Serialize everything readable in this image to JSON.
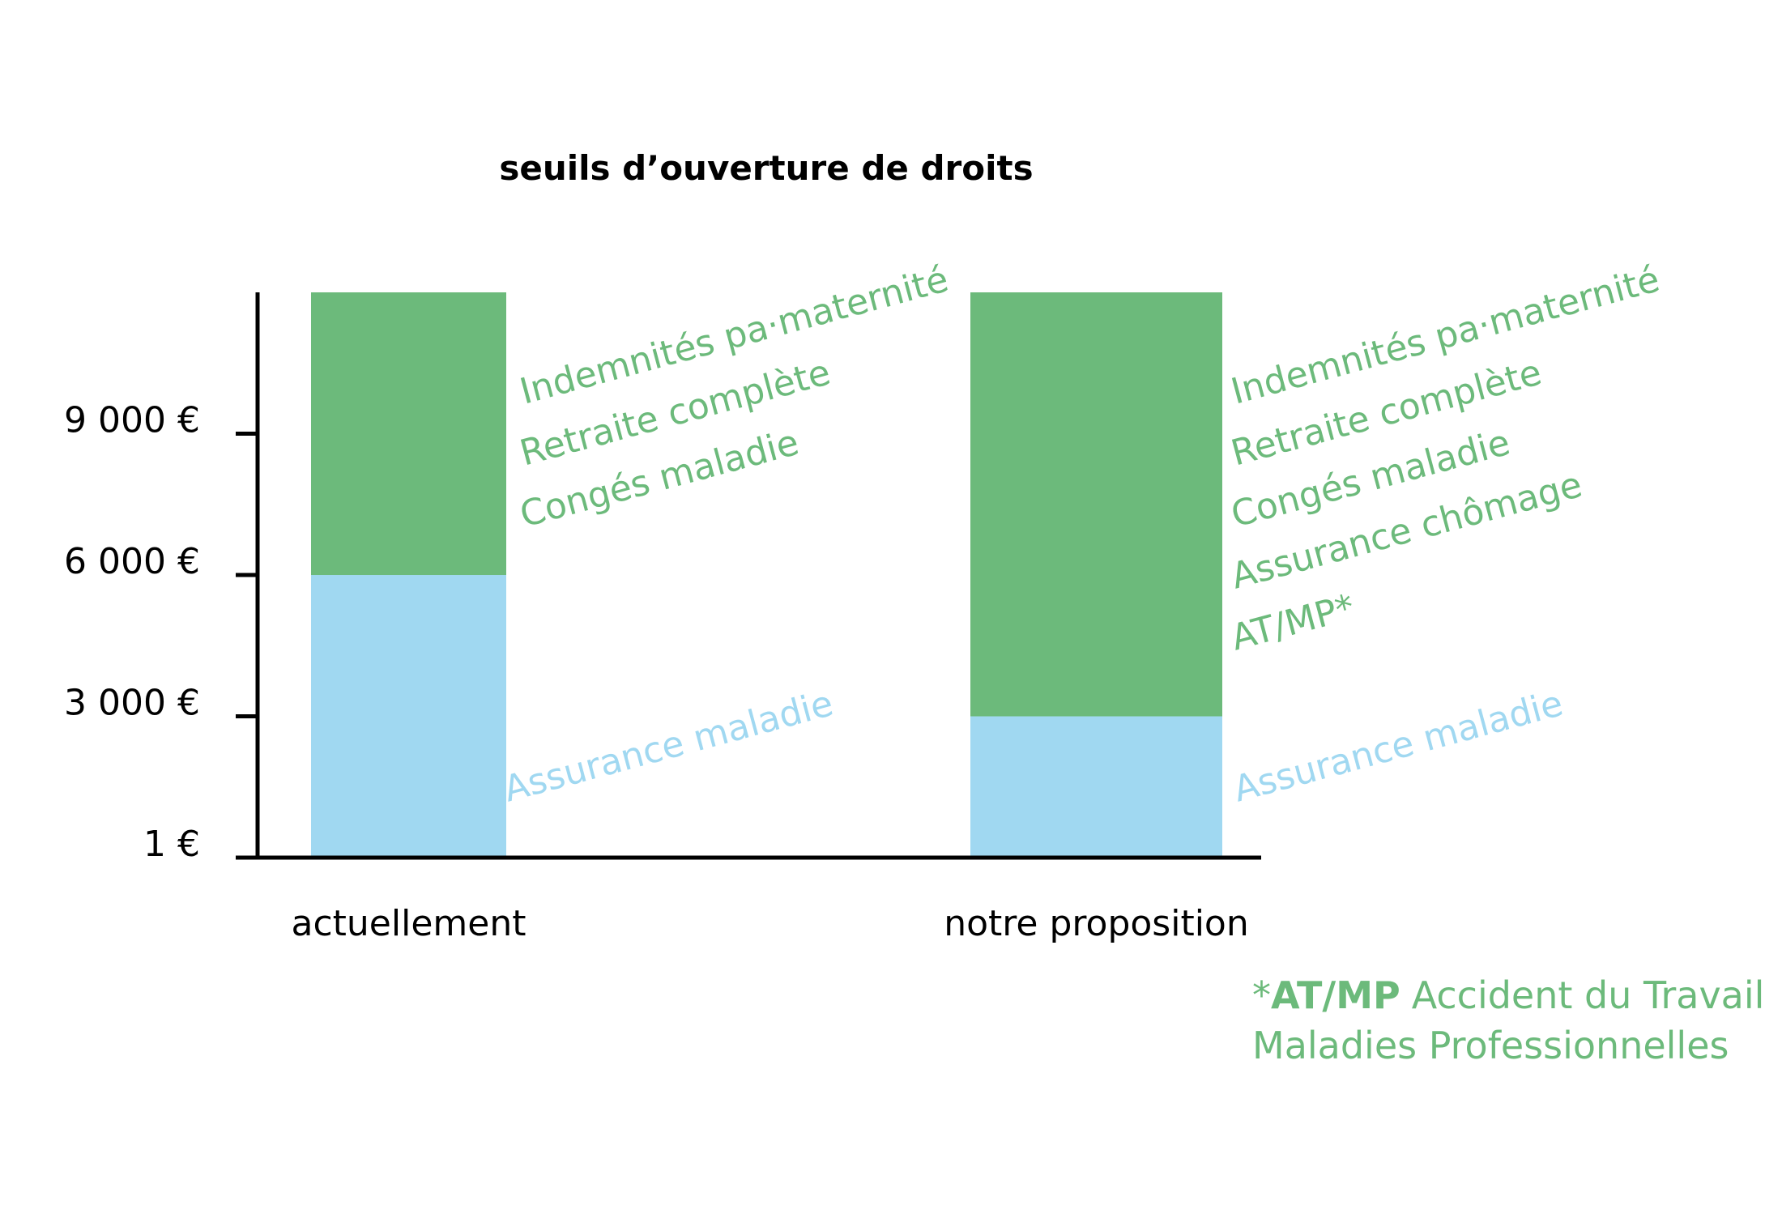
{
  "chart_data": {
    "type": "stacked_bar",
    "title": "seuils d’ouverture de droits",
    "categories": [
      "actuellement",
      "notre proposition"
    ],
    "series": [
      {
        "name": "Assurance maladie",
        "color": "#a0d8f1",
        "values": [
          6000,
          3000
        ]
      },
      {
        "color": "#6cba7b",
        "values": [
          6000,
          9000
        ]
      }
    ],
    "bar_labels": [
      [
        "Indemnités pa·maternité",
        "Retraite complète",
        "Congés maladie"
      ],
      [
        "Indemnités pa·maternité",
        "Retraite complète",
        "Congés maladie",
        "Assurance chômage",
        "AT/MP*"
      ]
    ],
    "ylim": [
      1,
      12000
    ],
    "yticks": [
      {
        "value": 1,
        "label": "1 €"
      },
      {
        "value": 3000,
        "label": "3 000 €"
      },
      {
        "value": 6000,
        "label": "6 000 €"
      },
      {
        "value": 9000,
        "label": "9 000 €"
      }
    ],
    "footnote": {
      "marker": "*",
      "term": "AT/MP",
      "text": "Accident du Travail",
      "line2": "Maladies Professionnelles"
    }
  }
}
